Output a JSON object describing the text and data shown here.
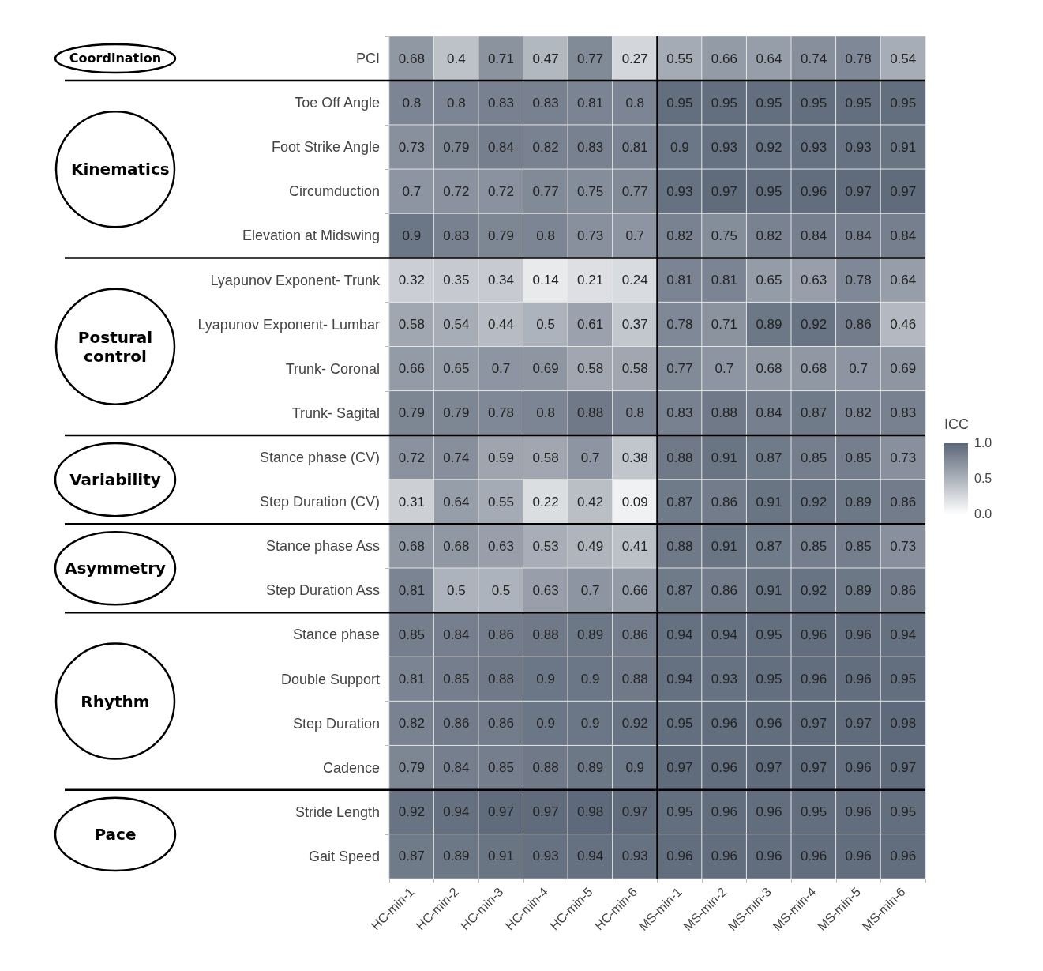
{
  "chart_data": {
    "type": "heatmap",
    "clabel": "ICC",
    "data_labels": true,
    "categories": [
      "HC-min-1",
      "HC-min-2",
      "HC-min-3",
      "HC-min-4",
      "HC-min-5",
      "HC-min-6",
      "MS-min-1",
      "MS-min-2",
      "MS-min-3",
      "MS-min-4",
      "MS-min-5",
      "MS-min-6"
    ],
    "y_categories": [
      "PCI",
      "Toe Off Angle",
      "Foot Strike Angle",
      "Circumduction",
      "Elevation at Midswing",
      "Lyapunov Exponent- Trunk",
      "Lyapunov Exponent- Lumbar",
      "Trunk- Coronal",
      "Trunk- Sagital",
      "Stance phase (CV)",
      "Step Duration (CV)",
      "Stance phase Ass",
      "Step Duration Ass",
      "Stance phase",
      "Double Support",
      "Step Duration",
      "Cadence",
      "Stride Length",
      "Gait Speed"
    ],
    "cells": [
      [
        0.68,
        0.4,
        0.71,
        0.47,
        0.77,
        0.27,
        0.55,
        0.66,
        0.64,
        0.74,
        0.78,
        0.54
      ],
      [
        0.8,
        0.8,
        0.83,
        0.83,
        0.81,
        0.8,
        0.95,
        0.95,
        0.95,
        0.95,
        0.95,
        0.95
      ],
      [
        0.73,
        0.79,
        0.84,
        0.82,
        0.83,
        0.81,
        0.9,
        0.93,
        0.92,
        0.93,
        0.93,
        0.91
      ],
      [
        0.7,
        0.72,
        0.72,
        0.77,
        0.75,
        0.77,
        0.93,
        0.97,
        0.95,
        0.96,
        0.97,
        0.97
      ],
      [
        0.9,
        0.83,
        0.79,
        0.8,
        0.73,
        0.7,
        0.82,
        0.75,
        0.82,
        0.84,
        0.84,
        0.84
      ],
      [
        0.32,
        0.35,
        0.34,
        0.14,
        0.21,
        0.24,
        0.81,
        0.81,
        0.65,
        0.63,
        0.78,
        0.64
      ],
      [
        0.58,
        0.54,
        0.44,
        0.5,
        0.61,
        0.37,
        0.78,
        0.71,
        0.89,
        0.92,
        0.86,
        0.46
      ],
      [
        0.66,
        0.65,
        0.7,
        0.69,
        0.58,
        0.58,
        0.77,
        0.7,
        0.68,
        0.68,
        0.7,
        0.69
      ],
      [
        0.79,
        0.79,
        0.78,
        0.8,
        0.88,
        0.8,
        0.83,
        0.88,
        0.84,
        0.87,
        0.82,
        0.83
      ],
      [
        0.72,
        0.74,
        0.59,
        0.58,
        0.7,
        0.38,
        0.88,
        0.91,
        0.87,
        0.85,
        0.85,
        0.73
      ],
      [
        0.31,
        0.64,
        0.55,
        0.22,
        0.42,
        0.09,
        0.87,
        0.86,
        0.91,
        0.92,
        0.89,
        0.86
      ],
      [
        0.68,
        0.68,
        0.63,
        0.53,
        0.49,
        0.41,
        0.88,
        0.91,
        0.87,
        0.85,
        0.85,
        0.73
      ],
      [
        0.81,
        0.5,
        0.5,
        0.63,
        0.7,
        0.66,
        0.87,
        0.86,
        0.91,
        0.92,
        0.89,
        0.86
      ],
      [
        0.85,
        0.84,
        0.86,
        0.88,
        0.89,
        0.86,
        0.94,
        0.94,
        0.95,
        0.96,
        0.96,
        0.94
      ],
      [
        0.81,
        0.85,
        0.88,
        0.9,
        0.9,
        0.88,
        0.94,
        0.93,
        0.95,
        0.96,
        0.96,
        0.95
      ],
      [
        0.82,
        0.86,
        0.86,
        0.9,
        0.9,
        0.92,
        0.95,
        0.96,
        0.96,
        0.97,
        0.97,
        0.98
      ],
      [
        0.79,
        0.84,
        0.85,
        0.88,
        0.89,
        0.9,
        0.97,
        0.96,
        0.97,
        0.97,
        0.96,
        0.97
      ],
      [
        0.92,
        0.94,
        0.97,
        0.97,
        0.98,
        0.97,
        0.95,
        0.96,
        0.96,
        0.95,
        0.96,
        0.95
      ],
      [
        0.87,
        0.89,
        0.91,
        0.93,
        0.94,
        0.93,
        0.96,
        0.96,
        0.96,
        0.96,
        0.96,
        0.96
      ]
    ],
    "clim": [
      0,
      1
    ],
    "cticks": [
      {
        "value": 0,
        "label": "0.0"
      },
      {
        "value": 0.5,
        "label": "0.5"
      },
      {
        "value": 1,
        "label": "1.0"
      }
    ],
    "annotations": [
      "Coordination",
      "Kinematics",
      "Postural control",
      "Variability",
      "Asymmetry",
      "Rhythm",
      "Pace"
    ]
  }
}
